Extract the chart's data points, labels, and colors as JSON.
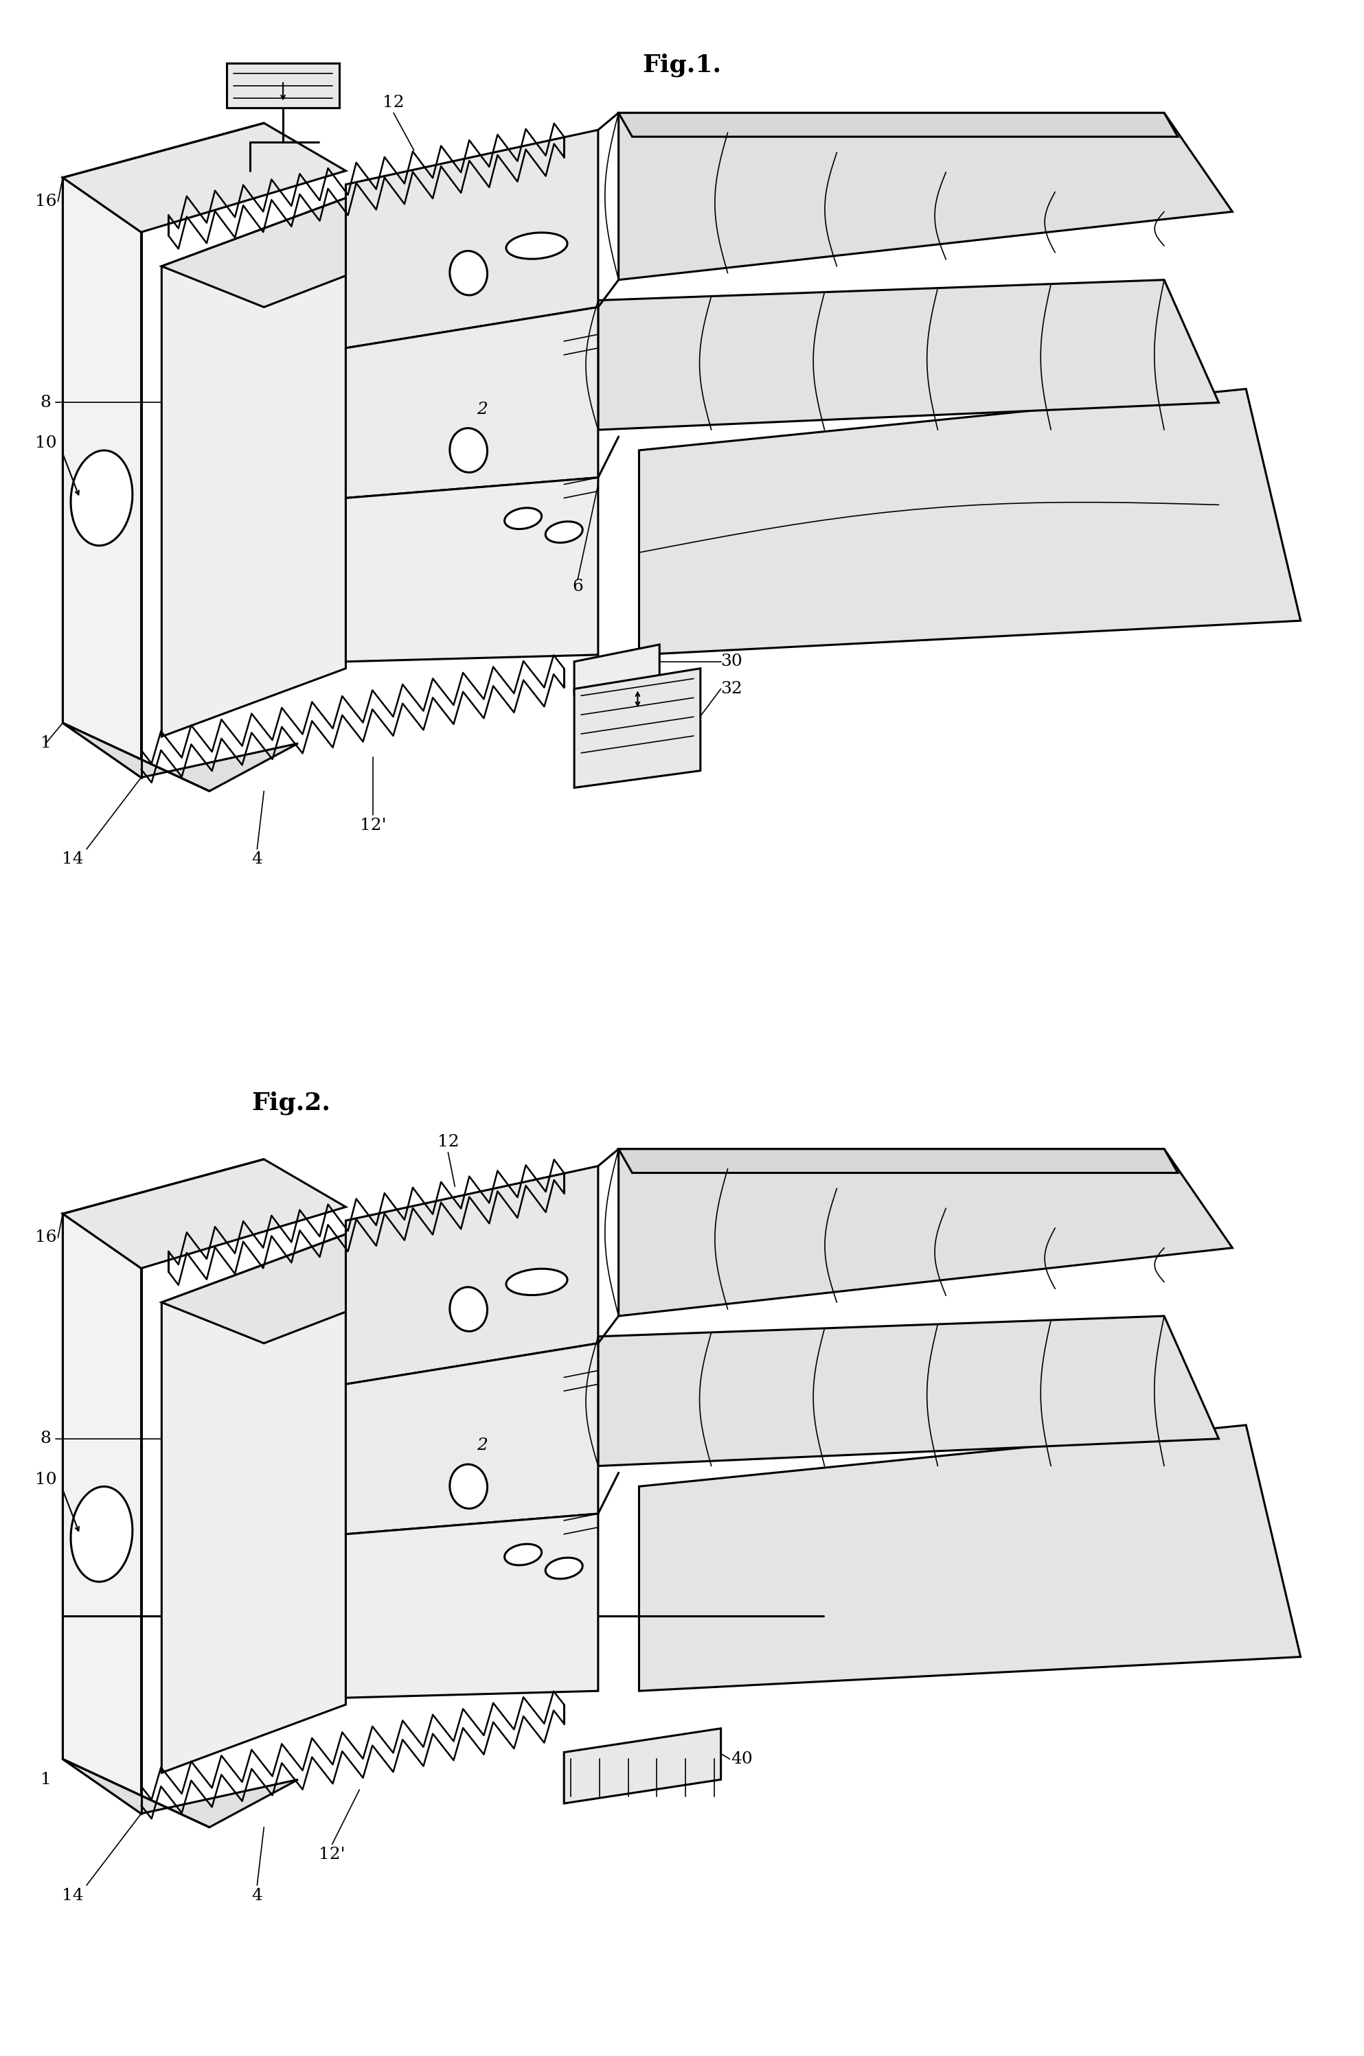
{
  "fig1_title": "Fig.1.",
  "fig2_title": "Fig.2.",
  "background_color": "#ffffff",
  "line_color": "#000000",
  "lw_main": 2.2,
  "lw_thin": 1.2,
  "lw_thick": 3.0,
  "label_fontsize": 18,
  "title_fontsize": 26
}
